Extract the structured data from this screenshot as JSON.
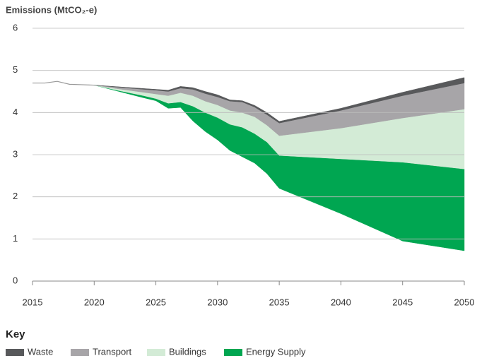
{
  "chart_data": {
    "type": "stacked_area",
    "y_axis_label": "Emissions (MtCO₂-e)",
    "legend_title": "Key",
    "x": [
      2020,
      2022,
      2024,
      2025,
      2026,
      2027,
      2028,
      2029,
      2030,
      2031,
      2032,
      2033,
      2034,
      2035,
      2040,
      2045,
      2050
    ],
    "base": {
      "color": "#ffffff",
      "values": [
        4.65,
        4.5,
        4.35,
        4.28,
        4.1,
        4.12,
        3.8,
        3.55,
        3.35,
        3.1,
        2.95,
        2.8,
        2.55,
        2.2,
        1.6,
        0.95,
        0.72
      ]
    },
    "series": [
      {
        "name": "Energy Supply",
        "color": "#00a651",
        "values": [
          0,
          0.02,
          0.05,
          0.05,
          0.12,
          0.13,
          0.35,
          0.45,
          0.53,
          0.62,
          0.7,
          0.7,
          0.75,
          0.78,
          1.3,
          1.87,
          1.94
        ]
      },
      {
        "name": "Buildings",
        "color": "#d3ebd6",
        "values": [
          0,
          0.04,
          0.08,
          0.11,
          0.18,
          0.22,
          0.25,
          0.27,
          0.3,
          0.33,
          0.35,
          0.4,
          0.4,
          0.47,
          0.73,
          1.05,
          1.42
        ]
      },
      {
        "name": "Transport",
        "color": "#a7a5a8",
        "values": [
          0,
          0.04,
          0.07,
          0.09,
          0.1,
          0.11,
          0.15,
          0.18,
          0.19,
          0.22,
          0.25,
          0.23,
          0.25,
          0.3,
          0.42,
          0.53,
          0.62
        ]
      },
      {
        "name": "Waste",
        "color": "#58595b",
        "values": [
          0,
          0.01,
          0.02,
          0.02,
          0.03,
          0.04,
          0.04,
          0.05,
          0.05,
          0.03,
          0.03,
          0.04,
          0.05,
          0.04,
          0.05,
          0.08,
          0.13
        ]
      }
    ],
    "historical": {
      "color": "#999999",
      "x": [
        2015,
        2016,
        2017,
        2018,
        2019,
        2020
      ],
      "values": [
        4.7,
        4.7,
        4.74,
        4.67,
        4.66,
        4.65
      ]
    },
    "legend_order": [
      3,
      2,
      1,
      0
    ],
    "xlim": [
      2015,
      2050
    ],
    "xticks": [
      2015,
      2020,
      2025,
      2030,
      2035,
      2040,
      2045,
      2050
    ],
    "ylim": [
      0,
      6
    ],
    "yticks": [
      0,
      1,
      2,
      3,
      4,
      5,
      6
    ],
    "grid": true
  }
}
